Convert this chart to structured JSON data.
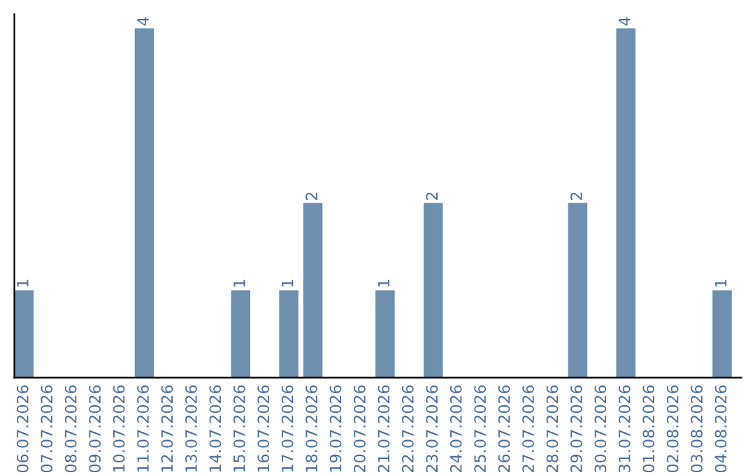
{
  "chart_data": {
    "type": "bar",
    "categories": [
      "06.07.2026",
      "07.07.2026",
      "08.07.2026",
      "09.07.2026",
      "10.07.2026",
      "11.07.2026",
      "12.07.2026",
      "13.07.2026",
      "14.07.2026",
      "15.07.2026",
      "16.07.2026",
      "17.07.2026",
      "18.07.2026",
      "19.07.2026",
      "20.07.2026",
      "21.07.2026",
      "22.07.2026",
      "23.07.2026",
      "24.07.2026",
      "25.07.2026",
      "26.07.2026",
      "27.07.2026",
      "28.07.2026",
      "29.07.2026",
      "30.07.2026",
      "31.07.2026",
      "01.08.2026",
      "02.08.2026",
      "03.08.2026",
      "04.08.2026"
    ],
    "values": [
      1,
      0,
      0,
      0,
      0,
      4,
      0,
      0,
      0,
      1,
      0,
      1,
      2,
      0,
      0,
      1,
      0,
      2,
      0,
      0,
      0,
      0,
      0,
      2,
      0,
      4,
      0,
      0,
      0,
      1
    ],
    "value_labels": [
      "1",
      null,
      null,
      null,
      null,
      "4",
      null,
      null,
      null,
      "1",
      null,
      "1",
      "2",
      null,
      null,
      "1",
      null,
      "2",
      null,
      null,
      null,
      null,
      null,
      "2",
      null,
      "4",
      null,
      null,
      null,
      "1"
    ],
    "color": "#6e8fad",
    "grid": false,
    "legend": false
  }
}
